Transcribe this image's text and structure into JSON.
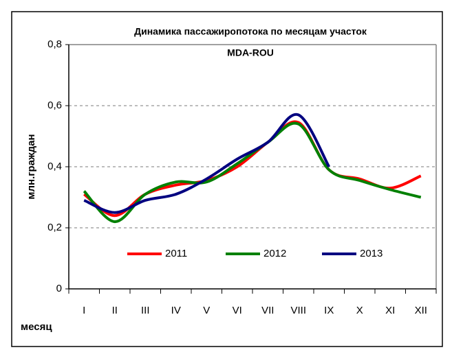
{
  "chart_data": {
    "type": "line",
    "title": [
      "Динамика пассажиропотока по месяцам участок",
      "MDA-ROU"
    ],
    "y_label": "млн.граждан",
    "x_label": "месяц",
    "categories": [
      "I",
      "II",
      "III",
      "IV",
      "V",
      "VI",
      "VII",
      "VIII",
      "IX",
      "X",
      "XI",
      "XII"
    ],
    "series": [
      {
        "name": "2011",
        "color": "#ff0000",
        "values": [
          0.31,
          0.24,
          0.31,
          0.34,
          0.355,
          0.4,
          0.48,
          0.545,
          0.39,
          0.36,
          0.33,
          0.37
        ]
      },
      {
        "name": "2012",
        "color": "#008000",
        "values": [
          0.32,
          0.22,
          0.31,
          0.35,
          0.35,
          0.41,
          0.48,
          0.54,
          0.39,
          0.355,
          0.325,
          0.3
        ]
      },
      {
        "name": "2013",
        "color": "#000080",
        "values": [
          0.29,
          0.25,
          0.29,
          0.31,
          0.36,
          0.425,
          0.48,
          0.57,
          0.4,
          null,
          null,
          null
        ]
      }
    ],
    "ylim": [
      0,
      0.8
    ],
    "yticks": [
      0,
      {
        "value": 0.2,
        "label": "0,2"
      },
      {
        "value": 0.4,
        "label": "0,4"
      },
      {
        "value": 0.6,
        "label": "0,6"
      },
      {
        "value": 0.8,
        "label": "0,8"
      }
    ],
    "grid": true,
    "smooth": true,
    "legend": "inside-bottom"
  }
}
